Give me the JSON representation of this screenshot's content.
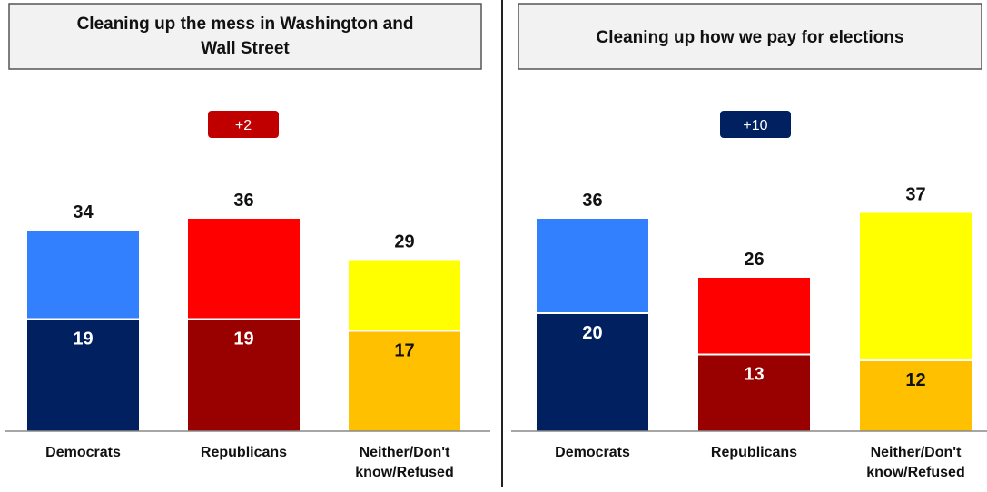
{
  "chart_data": [
    {
      "type": "bar",
      "stacked": true,
      "title": "Cleaning up the mess in Washington and Wall Street",
      "title_lines": [
        "Cleaning up the mess in Washington and",
        "Wall Street"
      ],
      "badge": {
        "label": "+2",
        "color": "#c00000"
      },
      "categories": [
        "Democrats",
        "Republicans",
        "Neither/Don't know/Refused"
      ],
      "category_lines": [
        [
          "Democrats"
        ],
        [
          "Republicans"
        ],
        [
          "Neither/Don't",
          "know/Refused"
        ]
      ],
      "totals": [
        34,
        36,
        29
      ],
      "series": [
        {
          "values": [
            19,
            19,
            17
          ],
          "colors": [
            "#002060",
            "#990000",
            "#ffc000"
          ]
        },
        {
          "values": [
            15,
            17,
            12
          ],
          "colors": [
            "#3380ff",
            "#ff0000",
            "#ffff00"
          ]
        }
      ],
      "data_labels": {
        "bottom": [
          "19",
          "19",
          "17"
        ],
        "total": [
          "34",
          "36",
          "29"
        ]
      },
      "legend": "none",
      "grid": false
    },
    {
      "type": "bar",
      "stacked": true,
      "title": "Cleaning up how we pay for elections",
      "title_lines": [
        "Cleaning up how we pay for elections"
      ],
      "badge": {
        "label": "+10",
        "color": "#002060"
      },
      "categories": [
        "Democrats",
        "Republicans",
        "Neither/Don't know/Refused"
      ],
      "category_lines": [
        [
          "Democrats"
        ],
        [
          "Republicans"
        ],
        [
          "Neither/Don't",
          "know/Refused"
        ]
      ],
      "totals": [
        36,
        26,
        37
      ],
      "series": [
        {
          "values": [
            20,
            13,
            12
          ],
          "colors": [
            "#002060",
            "#990000",
            "#ffc000"
          ]
        },
        {
          "values": [
            16,
            13,
            25
          ],
          "colors": [
            "#3380ff",
            "#ff0000",
            "#ffff00"
          ]
        }
      ],
      "data_labels": {
        "bottom": [
          "20",
          "13",
          "12"
        ],
        "total": [
          "36",
          "26",
          "37"
        ]
      },
      "legend": "none",
      "grid": false
    }
  ]
}
